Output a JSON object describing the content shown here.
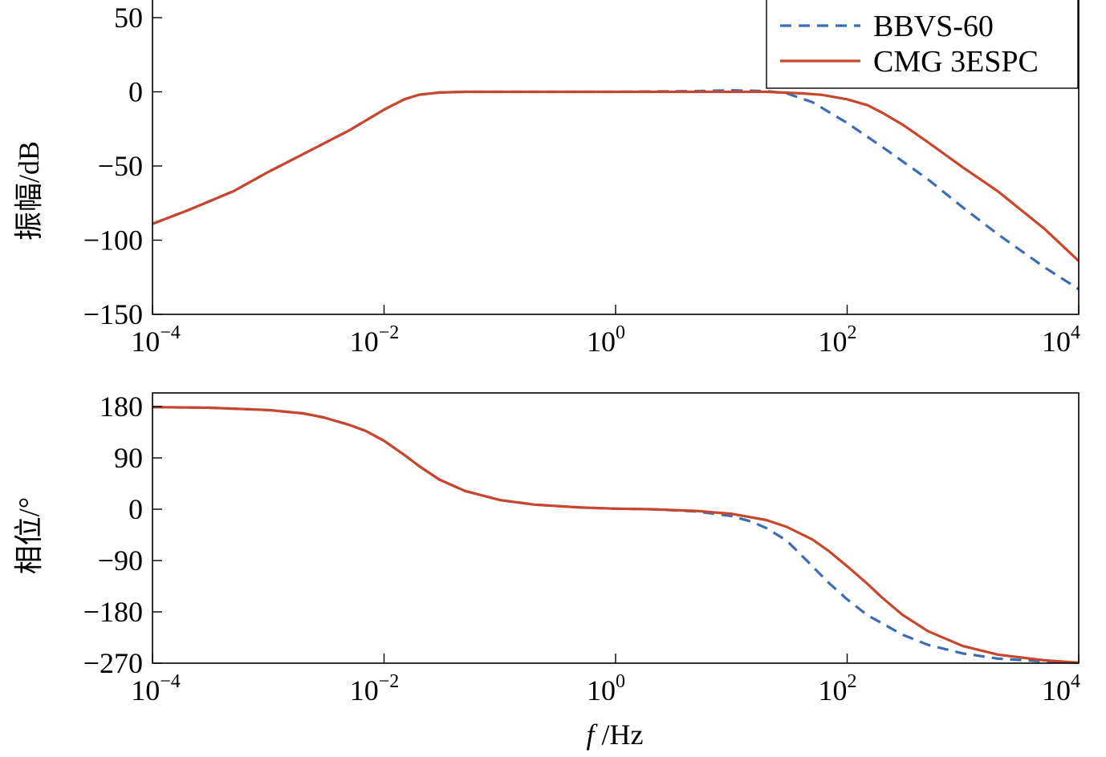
{
  "chart_data": [
    {
      "type": "line",
      "ylabel": "振幅/dB",
      "xscale": "log",
      "xlim": [
        0.0001,
        10000
      ],
      "ylim": [
        -150,
        60
      ],
      "xtick_labels": [
        {
          "base": "10",
          "exp": "−4"
        },
        {
          "base": "10",
          "exp": "−2"
        },
        {
          "base": "10",
          "exp": "0"
        },
        {
          "base": "10",
          "exp": "2"
        },
        {
          "base": "10",
          "exp": "4"
        }
      ],
      "xtick_values": [
        0.0001,
        0.01,
        1,
        100,
        10000
      ],
      "ytick_values": [
        50,
        0,
        -50,
        -100,
        -150
      ],
      "ytick_labels": [
        "50",
        "0",
        "−50",
        "−100",
        "−150"
      ],
      "grid": false,
      "legend_position": "top-right",
      "legend": [
        "BBVS-60",
        "CMG 3ESPC"
      ],
      "series": [
        {
          "name": "BBVS-60",
          "color": "#3c6db4",
          "style": "dashed",
          "x": [
            0.0001,
            0.0002,
            0.0005,
            0.001,
            0.002,
            0.005,
            0.01,
            0.015,
            0.02,
            0.03,
            0.05,
            0.1,
            1,
            5,
            10,
            20,
            30,
            50,
            100,
            200,
            500,
            1000,
            2000,
            5000,
            10000
          ],
          "y": [
            -89,
            -80,
            -67,
            -54,
            -42,
            -26,
            -12,
            -5,
            -2,
            -0.5,
            0,
            0,
            0,
            0.5,
            1,
            0.5,
            -1,
            -7,
            -21,
            -37,
            -59,
            -78,
            -96,
            -118,
            -133
          ]
        },
        {
          "name": "CMG 3ESPC",
          "color": "#c8472c",
          "style": "solid",
          "x": [
            0.0001,
            0.0002,
            0.0005,
            0.001,
            0.002,
            0.005,
            0.01,
            0.015,
            0.02,
            0.03,
            0.05,
            0.1,
            1,
            10,
            20,
            40,
            60,
            100,
            150,
            200,
            300,
            500,
            1000,
            2000,
            5000,
            10000
          ],
          "y": [
            -89,
            -80,
            -67,
            -54,
            -42,
            -26,
            -12,
            -5,
            -2,
            -0.5,
            0,
            0,
            0,
            0,
            0,
            -1,
            -2,
            -5,
            -9,
            -14,
            -22,
            -34,
            -51,
            -67,
            -92,
            -114
          ]
        }
      ]
    },
    {
      "type": "line",
      "xlabel_italic": "f",
      "xlabel_rest": " /Hz",
      "ylabel": "相位/°",
      "xscale": "log",
      "xlim": [
        0.0001,
        10000
      ],
      "ylim": [
        -270,
        180
      ],
      "xtick_labels": [
        {
          "base": "10",
          "exp": "−4"
        },
        {
          "base": "10",
          "exp": "−2"
        },
        {
          "base": "10",
          "exp": "0"
        },
        {
          "base": "10",
          "exp": "2"
        },
        {
          "base": "10",
          "exp": "4"
        }
      ],
      "xtick_values": [
        0.0001,
        0.01,
        1,
        100,
        10000
      ],
      "ytick_values": [
        180,
        90,
        0,
        -90,
        -180,
        -270
      ],
      "ytick_labels": [
        "180",
        "90",
        "0",
        "−90",
        "−180",
        "−270"
      ],
      "grid": false,
      "series": [
        {
          "name": "BBVS-60",
          "color": "#3c6db4",
          "style": "dashed",
          "x": [
            0.0001,
            0.0003,
            0.001,
            0.002,
            0.003,
            0.005,
            0.007,
            0.01,
            0.015,
            0.02,
            0.03,
            0.05,
            0.1,
            0.2,
            0.5,
            1,
            2,
            5,
            10,
            15,
            20,
            30,
            40,
            50,
            70,
            100,
            150,
            200,
            300,
            500,
            1000,
            2000,
            5000,
            10000
          ],
          "y": [
            179,
            178,
            174,
            168,
            161,
            148,
            137,
            120,
            95,
            76,
            52,
            32,
            16,
            8,
            3,
            1,
            0,
            -4,
            -12,
            -22,
            -33,
            -55,
            -80,
            -100,
            -130,
            -158,
            -186,
            -200,
            -220,
            -238,
            -253,
            -262,
            -267,
            -269
          ]
        },
        {
          "name": "CMG 3ESPC",
          "color": "#c8472c",
          "style": "solid",
          "x": [
            0.0001,
            0.0003,
            0.001,
            0.002,
            0.003,
            0.005,
            0.007,
            0.01,
            0.015,
            0.02,
            0.03,
            0.05,
            0.1,
            0.2,
            0.5,
            1,
            2,
            5,
            10,
            20,
            30,
            50,
            70,
            100,
            150,
            200,
            300,
            500,
            1000,
            2000,
            5000,
            10000
          ],
          "y": [
            179,
            178,
            174,
            168,
            161,
            148,
            137,
            120,
            95,
            76,
            52,
            32,
            16,
            8,
            3,
            1,
            0,
            -3,
            -8,
            -19,
            -31,
            -53,
            -74,
            -100,
            -131,
            -155,
            -185,
            -214,
            -240,
            -255,
            -265,
            -269
          ]
        }
      ]
    }
  ]
}
